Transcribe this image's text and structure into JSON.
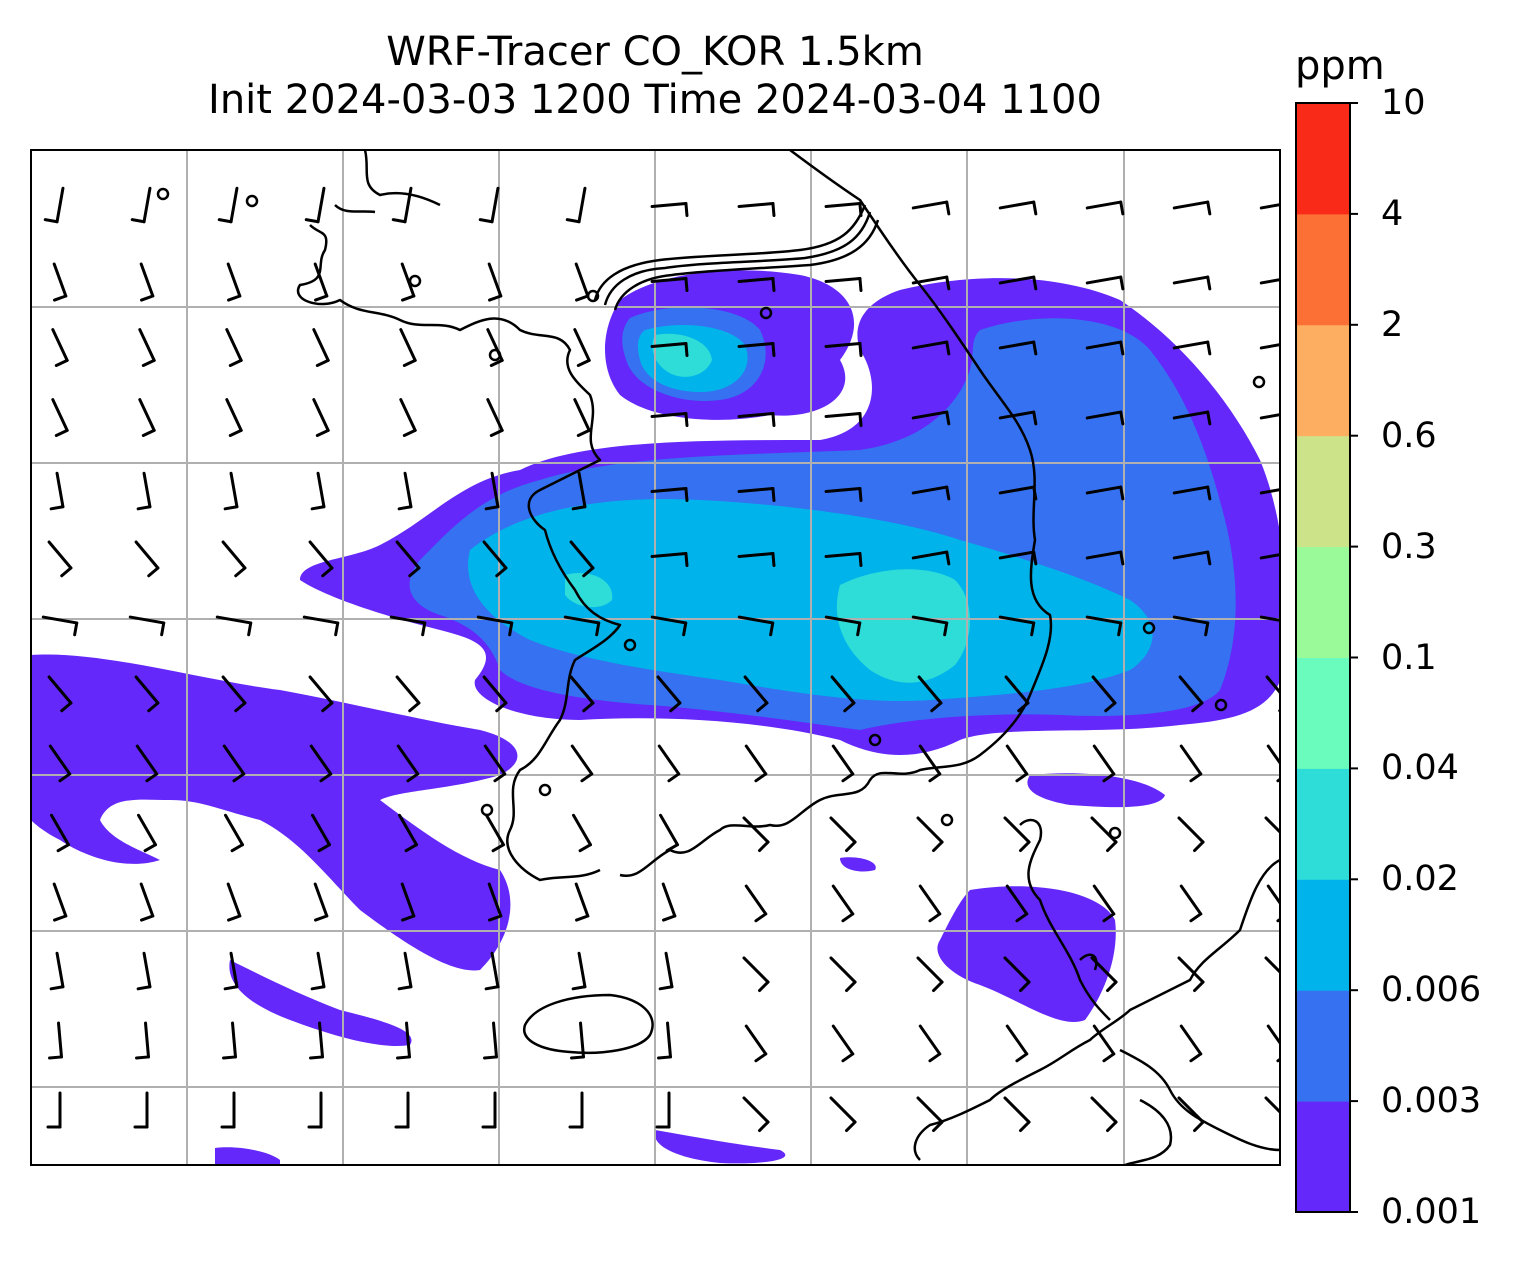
{
  "title": {
    "line1": "WRF-Tracer CO_KOR 1.5km",
    "line2": "Init 2024-03-03 1200 Time 2024-03-04 1100"
  },
  "colorbar": {
    "unit": "ppm",
    "levels": [
      "0.001",
      "0.003",
      "0.006",
      "0.02",
      "0.04",
      "0.1",
      "0.3",
      "0.6",
      "2",
      "4",
      "10"
    ],
    "colors": [
      "#6428fa",
      "#3571f0",
      "#00b4eb",
      "#2edcd8",
      "#6afcbc",
      "#9afa9a",
      "#cde38a",
      "#fdae61",
      "#fc7036",
      "#f92a17"
    ]
  },
  "map": {
    "colors": {
      "coast": "#000000",
      "grid": "#b0b0b0",
      "barb": "#000000"
    },
    "grid_lines": true,
    "wind_barbs": true,
    "field": "CO tracer concentration"
  }
}
